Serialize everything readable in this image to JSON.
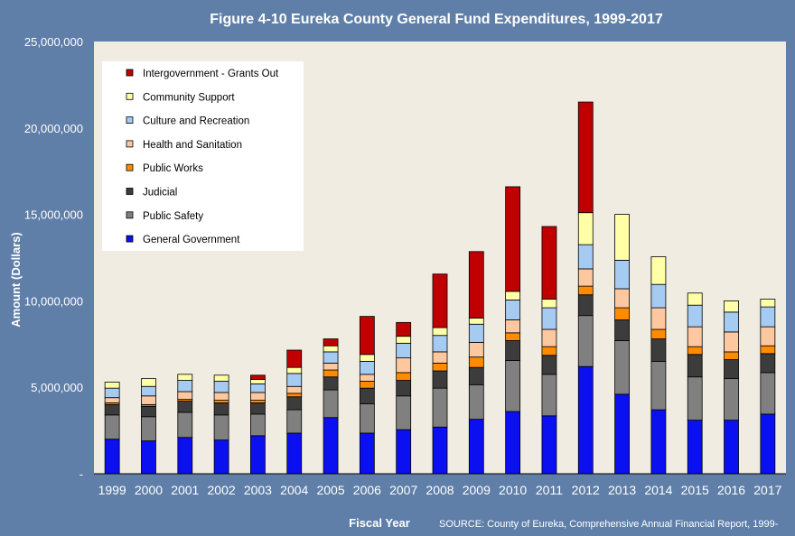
{
  "colors": {
    "background": "#5f7fa8",
    "plot_area": "#f0ece1",
    "text": "#ffffff"
  },
  "chart_data": {
    "type": "bar",
    "stacked": true,
    "title": "Figure 4-10 Eureka County General Fund Expenditures, 1999-2017",
    "xlabel": "Fiscal Year",
    "ylabel": "Amount (Dollars)",
    "source": "SOURCE: County of Eureka, Comprehensive Annual Financial Report, 1999-",
    "ylim": [
      0,
      25000000
    ],
    "yticks": [
      0,
      5000000,
      10000000,
      15000000,
      20000000,
      25000000
    ],
    "ytick_labels": [
      "-",
      "5,000,000",
      "10,000,000",
      "15,000,000",
      "20,000,000",
      "25,000,000"
    ],
    "grid": false,
    "legend_position": "top-left",
    "categories": [
      "1999",
      "2000",
      "2001",
      "2002",
      "2003",
      "2004",
      "2005",
      "2006",
      "2007",
      "2008",
      "2009",
      "2010",
      "2011",
      "2012",
      "2013",
      "2014",
      "2015",
      "2016",
      "2017"
    ],
    "series": [
      {
        "name": "General Government",
        "color": "#0a10f0",
        "values": [
          2000000,
          1900000,
          2100000,
          1950000,
          2200000,
          2350000,
          3250000,
          2350000,
          2550000,
          2700000,
          3150000,
          3600000,
          3350000,
          6200000,
          4600000,
          3700000,
          3100000,
          3100000,
          3450000
        ]
      },
      {
        "name": "Public Safety",
        "color": "#808080",
        "values": [
          1400000,
          1400000,
          1450000,
          1450000,
          1250000,
          1350000,
          1600000,
          1700000,
          1950000,
          2250000,
          2000000,
          2950000,
          2400000,
          2950000,
          3100000,
          2800000,
          2500000,
          2400000,
          2400000
        ]
      },
      {
        "name": "Judicial",
        "color": "#3c3c3c",
        "values": [
          600000,
          600000,
          650000,
          700000,
          650000,
          750000,
          750000,
          900000,
          900000,
          1000000,
          1000000,
          1150000,
          1100000,
          1200000,
          1200000,
          1300000,
          1300000,
          1100000,
          1100000
        ]
      },
      {
        "name": "Public Works",
        "color": "#ff8c00",
        "values": [
          100000,
          100000,
          100000,
          150000,
          150000,
          200000,
          400000,
          400000,
          450000,
          450000,
          600000,
          450000,
          500000,
          500000,
          700000,
          550000,
          450000,
          450000,
          450000
        ]
      },
      {
        "name": "Health and Sanitation",
        "color": "#fdc8a0",
        "values": [
          300000,
          500000,
          450000,
          450000,
          450000,
          400000,
          400000,
          400000,
          850000,
          650000,
          850000,
          750000,
          1000000,
          1000000,
          1100000,
          1250000,
          1150000,
          1150000,
          1100000
        ]
      },
      {
        "name": "Culture and Recreation",
        "color": "#a6cbf2",
        "values": [
          550000,
          550000,
          650000,
          650000,
          500000,
          750000,
          650000,
          750000,
          850000,
          950000,
          1050000,
          1150000,
          1250000,
          1400000,
          1650000,
          1350000,
          1250000,
          1150000,
          1150000
        ]
      },
      {
        "name": "Community Support",
        "color": "#ffffa8",
        "values": [
          350000,
          450000,
          350000,
          350000,
          250000,
          350000,
          350000,
          400000,
          400000,
          450000,
          350000,
          500000,
          500000,
          1850000,
          2650000,
          1600000,
          700000,
          650000,
          450000
        ]
      },
      {
        "name": "Intergovernment - Grants Out",
        "color": "#c00000",
        "values": [
          0,
          0,
          0,
          0,
          250000,
          1000000,
          400000,
          2200000,
          800000,
          3100000,
          3850000,
          6050000,
          4200000,
          6400000,
          0,
          0,
          0,
          0,
          0
        ]
      }
    ]
  }
}
